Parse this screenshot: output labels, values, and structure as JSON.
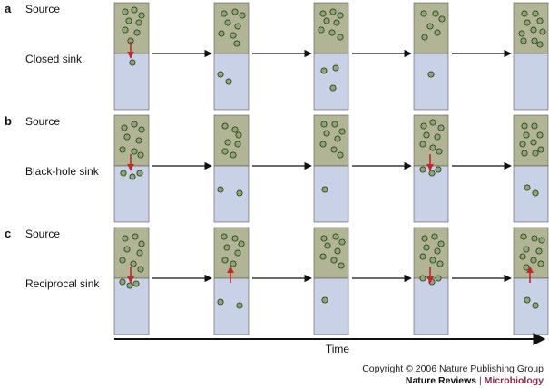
{
  "panels": [
    {
      "letter": "a",
      "source_label": "Source",
      "sink_label": "Closed sink"
    },
    {
      "letter": "b",
      "source_label": "Source",
      "sink_label": "Black-hole sink"
    },
    {
      "letter": "c",
      "source_label": "Source",
      "sink_label": "Reciprocal sink"
    }
  ],
  "time_label": "Time",
  "footer": {
    "copyright": "Copyright © 2006 Nature Publishing Group",
    "journal_main": "Nature Reviews",
    "journal_sep": "|",
    "journal_sub": "Microbiology"
  },
  "colors": {
    "source": "#b1b595",
    "sink": "#c8d1e6",
    "cell_fill": "#8ea86e",
    "cell_stroke": "#2f3f2b",
    "migration_arrow": "#c0282c"
  }
}
